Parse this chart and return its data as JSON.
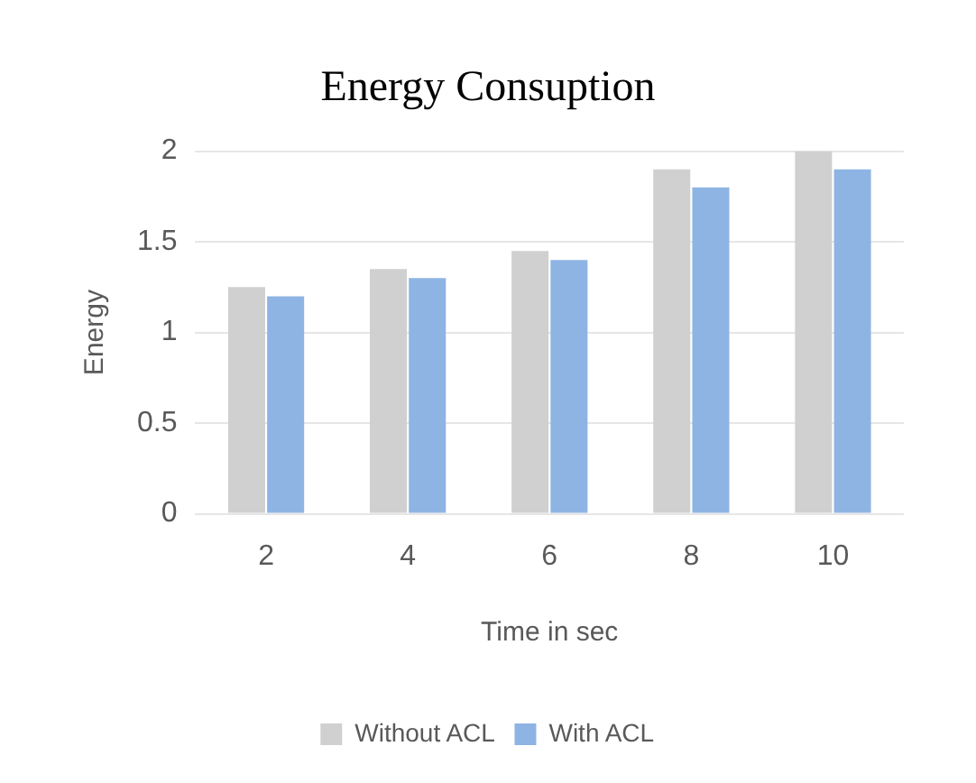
{
  "chart_data": {
    "type": "bar",
    "title": "Energy Consuption",
    "xlabel": "Time in sec",
    "ylabel": "Energy",
    "categories": [
      "2",
      "4",
      "6",
      "8",
      "10"
    ],
    "series": [
      {
        "name": "Without ACL",
        "color": "#d0d0d0",
        "values": [
          1.25,
          1.35,
          1.45,
          1.9,
          2.0
        ]
      },
      {
        "name": "With ACL",
        "color": "#8eb4e3",
        "values": [
          1.2,
          1.3,
          1.4,
          1.8,
          1.9
        ]
      }
    ],
    "ylim": [
      0,
      2
    ],
    "yticks": [
      0,
      0.5,
      1,
      1.5,
      2
    ],
    "grid": "y",
    "legend": "bottom"
  }
}
